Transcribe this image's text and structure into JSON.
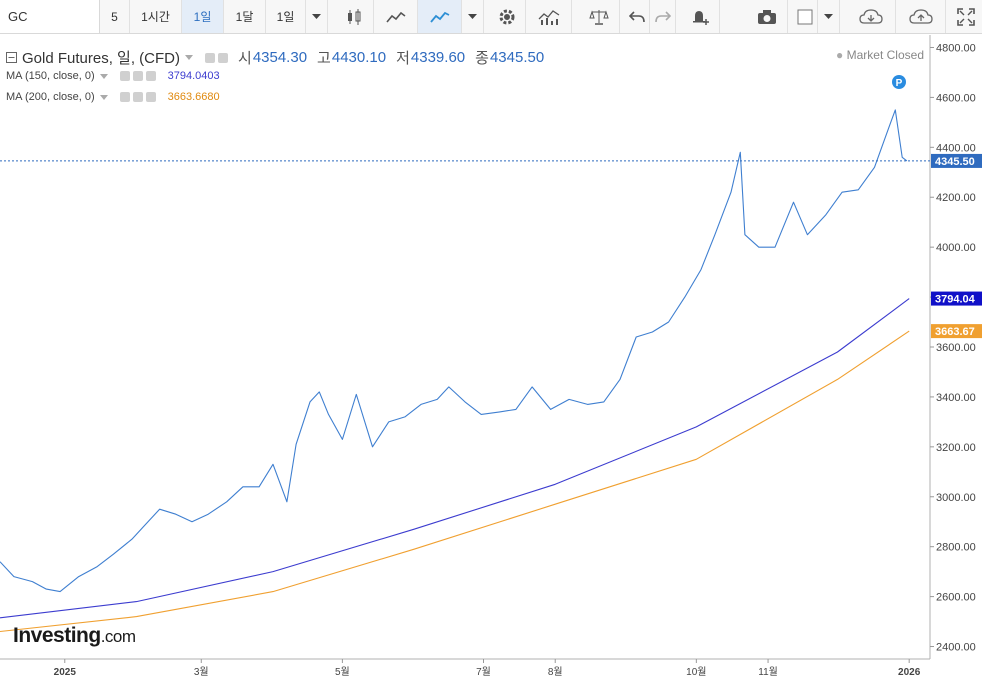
{
  "toolbar": {
    "symbol": "GC",
    "interval_value": "5",
    "intervals": [
      "1시간",
      "1일",
      "1달",
      "1일"
    ],
    "icons": [
      "candlestick-icon",
      "area-chart-icon",
      "line-chart-icon",
      "settings-icon",
      "indicators-icon",
      "compare-icon",
      "undo-icon",
      "redo-icon",
      "alert-icon",
      "camera-icon",
      "color-box-icon",
      "cloud-download-icon",
      "cloud-upload-icon",
      "fullscreen-icon"
    ]
  },
  "legend": {
    "title": "Gold Futures, 일, (CFD)",
    "open_label": "시",
    "open": "4354.30",
    "high_label": "고",
    "high": "4430.10",
    "low_label": "저",
    "low": "4339.60",
    "close_label": "종",
    "close": "4345.50",
    "ma150_label": "MA (150, close, 0)",
    "ma150_value": "3794.0403",
    "ma200_label": "MA (200, close, 0)",
    "ma200_value": "3663.6680"
  },
  "market_status": "Market Closed",
  "branding": {
    "name": "Investing",
    "suffix": ".com"
  },
  "colors": {
    "price": "#3f7fd0",
    "ma150": "#3c3ccf",
    "ma200": "#f0a030",
    "last_price_tag": "#2f6bbf"
  },
  "chart_data": {
    "type": "line",
    "ylim": [
      2350,
      4850
    ],
    "yticks": [
      "2400.00",
      "2600.00",
      "2800.00",
      "3000.00",
      "3200.00",
      "3400.00",
      "3600.00",
      "3800.00",
      "4000.00",
      "4200.00",
      "4400.00",
      "4600.00",
      "4800.00"
    ],
    "x_tick_labels": [
      "2025",
      "3월",
      "5월",
      "7월",
      "8월",
      "10월",
      "11월",
      "2026"
    ],
    "x_tick_dates": [
      "2025-01-01",
      "2025-03-01",
      "2025-05-01",
      "2025-07-01",
      "2025-08-01",
      "2025-10-01",
      "2025-11-01",
      "2026-01-01"
    ],
    "x_range": [
      "2024-12-04",
      "2026-01-10"
    ],
    "tags": {
      "close": "4345.50",
      "ma150": "3794.04",
      "ma200": "3663.67"
    },
    "series": [
      {
        "name": "Gold Futures",
        "x": [
          "2024-12-04",
          "2024-12-10",
          "2024-12-18",
          "2024-12-24",
          "2024-12-30",
          "2025-01-07",
          "2025-01-15",
          "2025-01-22",
          "2025-01-30",
          "2025-02-05",
          "2025-02-11",
          "2025-02-18",
          "2025-02-25",
          "2025-03-04",
          "2025-03-12",
          "2025-03-19",
          "2025-03-26",
          "2025-04-01",
          "2025-04-07",
          "2025-04-11",
          "2025-04-17",
          "2025-04-21",
          "2025-04-25",
          "2025-05-01",
          "2025-05-07",
          "2025-05-14",
          "2025-05-21",
          "2025-05-28",
          "2025-06-04",
          "2025-06-11",
          "2025-06-16",
          "2025-06-23",
          "2025-06-30",
          "2025-07-08",
          "2025-07-15",
          "2025-07-22",
          "2025-07-30",
          "2025-08-07",
          "2025-08-15",
          "2025-08-22",
          "2025-08-29",
          "2025-09-05",
          "2025-09-12",
          "2025-09-19",
          "2025-09-26",
          "2025-10-03",
          "2025-10-09",
          "2025-10-16",
          "2025-10-20",
          "2025-10-22",
          "2025-10-28",
          "2025-11-04",
          "2025-11-12",
          "2025-11-18",
          "2025-11-26",
          "2025-12-03",
          "2025-12-10",
          "2025-12-17",
          "2025-12-24",
          "2025-12-26",
          "2025-12-29",
          "2025-12-31"
        ],
        "values": [
          2740,
          2680,
          2660,
          2630,
          2620,
          2680,
          2720,
          2770,
          2830,
          2890,
          2950,
          2930,
          2900,
          2930,
          2980,
          3040,
          3040,
          3130,
          2980,
          3210,
          3380,
          3420,
          3330,
          3230,
          3410,
          3200,
          3300,
          3320,
          3370,
          3390,
          3440,
          3380,
          3330,
          3340,
          3350,
          3440,
          3350,
          3390,
          3370,
          3380,
          3470,
          3640,
          3660,
          3700,
          3800,
          3910,
          4050,
          4220,
          4380,
          4050,
          4000,
          4000,
          4180,
          4050,
          4130,
          4220,
          4230,
          4320,
          4500,
          4550,
          4360,
          4345.5
        ]
      },
      {
        "name": "MA (150, close, 0)",
        "x": [
          "2024-12-04",
          "2025-02-01",
          "2025-04-01",
          "2025-06-01",
          "2025-08-01",
          "2025-10-01",
          "2025-12-01",
          "2026-01-01"
        ],
        "values": [
          2515,
          2580,
          2700,
          2870,
          3050,
          3280,
          3580,
          3794.04
        ]
      },
      {
        "name": "MA (200, close, 0)",
        "x": [
          "2024-12-04",
          "2025-02-01",
          "2025-04-01",
          "2025-06-01",
          "2025-08-01",
          "2025-10-01",
          "2025-12-01",
          "2026-01-01"
        ],
        "values": [
          2460,
          2520,
          2620,
          2790,
          2970,
          3150,
          3470,
          3663.67
        ]
      }
    ]
  }
}
